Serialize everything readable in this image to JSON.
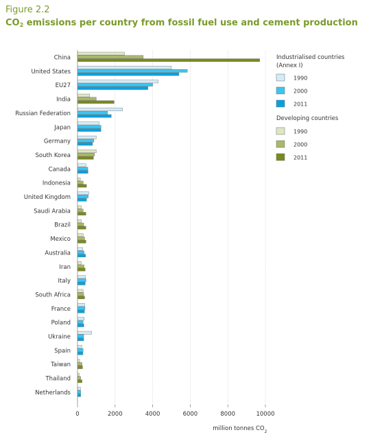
{
  "figure": {
    "label": "Figure 2.2",
    "title_prefix": "CO",
    "title_sub": "2",
    "title_suffix": " emissions per country from fossil fuel use and cement production"
  },
  "colors": {
    "title_green": "#7a9a2a",
    "ind_1990": "#d2ecf8",
    "ind_2000": "#3cc5f0",
    "ind_2011": "#0aa0de",
    "dev_1990": "#dde7c4",
    "dev_2000": "#aab86a",
    "dev_2011": "#788a20",
    "bar_outline": "#6d6d6d",
    "axis": "#888888"
  },
  "chart_data": {
    "type": "bar",
    "orientation": "horizontal",
    "categories": [
      "China",
      "United States",
      "EU27",
      "India",
      "Russian Federation",
      "Japan",
      "Germany",
      "South Korea",
      "Canada",
      "Indonesia",
      "United Kingdom",
      "Saudi Arabia",
      "Brazil",
      "Mexico",
      "Australia",
      "Iran",
      "Italy",
      "South Africa",
      "France",
      "Poland",
      "Ukraine",
      "Spain",
      "Taiwan",
      "Thailand",
      "Netherlands"
    ],
    "category_group": [
      "dev",
      "ind",
      "ind",
      "dev",
      "ind",
      "ind",
      "ind",
      "dev",
      "ind",
      "dev",
      "ind",
      "dev",
      "dev",
      "dev",
      "ind",
      "dev",
      "ind",
      "dev",
      "ind",
      "ind",
      "ind",
      "ind",
      "dev",
      "dev",
      "ind"
    ],
    "years": [
      "1990",
      "2000",
      "2011"
    ],
    "values": {
      "1990": [
        2500,
        5000,
        4300,
        650,
        2400,
        1150,
        1000,
        1000,
        450,
        150,
        600,
        200,
        200,
        300,
        280,
        200,
        430,
        300,
        380,
        360,
        750,
        230,
        120,
        90,
        160
      ],
      "2000": [
        3500,
        5850,
        4000,
        1000,
        1600,
        1250,
        870,
        900,
        550,
        300,
        570,
        300,
        330,
        380,
        350,
        350,
        450,
        330,
        400,
        300,
        330,
        300,
        240,
        170,
        170
      ],
      "2011": [
        9700,
        5400,
        3750,
        1950,
        1800,
        1250,
        800,
        850,
        560,
        480,
        480,
        450,
        450,
        450,
        430,
        410,
        410,
        380,
        370,
        340,
        330,
        290,
        270,
        240,
        170
      ]
    },
    "xlim": [
      0,
      10000
    ],
    "xticks": [
      "0",
      "2000",
      "4000",
      "6000",
      "8000",
      "10000"
    ],
    "xlabel_prefix": "million tonnes CO",
    "xlabel_sub": "2",
    "legend": {
      "industrialised_title": [
        "Industrialised countries",
        "(Annex I)"
      ],
      "developing_title": "Developing countries",
      "entries": [
        "1990",
        "2000",
        "2011"
      ],
      "placement": "right"
    }
  }
}
